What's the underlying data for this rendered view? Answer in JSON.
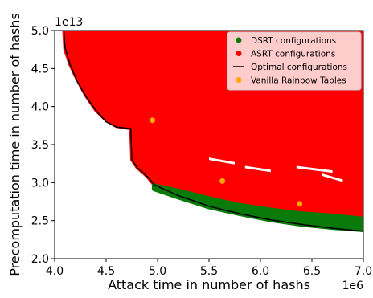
{
  "chart_data": {
    "type": "scatter",
    "xlabel": "Attack time in number of hashs",
    "ylabel": "Precomputation time in number of hashs",
    "x_scale_label": "1e6",
    "y_scale_label": "1e13",
    "xlim": [
      4.0,
      7.0
    ],
    "ylim": [
      2.0,
      5.0
    ],
    "x_ticks": [
      "4.0",
      "4.5",
      "5.0",
      "5.5",
      "6.0",
      "6.5",
      "7.0"
    ],
    "y_ticks": [
      "2.0",
      "2.5",
      "3.0",
      "3.5",
      "4.0",
      "4.5",
      "5.0"
    ],
    "legend_position": "top-right",
    "colors": {
      "dsrt": "#0a7a0a",
      "asrt": "#ff0000",
      "optimal": "#000000",
      "vanilla": "#ffa500"
    },
    "series": [
      {
        "name": "DSRT configurations",
        "kind": "scatter",
        "color_key": "dsrt",
        "boundary": [
          [
            4.96,
            2.91
          ],
          [
            5.2,
            2.8
          ],
          [
            5.5,
            2.67
          ],
          [
            5.8,
            2.58
          ],
          [
            6.1,
            2.5
          ],
          [
            6.4,
            2.44
          ],
          [
            6.7,
            2.4
          ],
          [
            7.0,
            2.37
          ]
        ],
        "upper": [
          [
            4.96,
            2.97
          ],
          [
            5.2,
            2.9
          ],
          [
            5.5,
            2.8
          ],
          [
            5.8,
            2.71
          ],
          [
            6.1,
            2.65
          ],
          [
            6.4,
            2.6
          ],
          [
            6.7,
            2.57
          ],
          [
            7.0,
            2.53
          ]
        ]
      },
      {
        "name": "ASRT configurations",
        "kind": "scatter",
        "color_key": "asrt",
        "boundary": [
          [
            4.09,
            5.0
          ],
          [
            4.1,
            4.75
          ],
          [
            4.15,
            4.55
          ],
          [
            4.22,
            4.35
          ],
          [
            4.3,
            4.15
          ],
          [
            4.4,
            3.95
          ],
          [
            4.5,
            3.82
          ],
          [
            4.6,
            3.74
          ],
          [
            4.74,
            3.71
          ],
          [
            4.75,
            3.3
          ],
          [
            4.8,
            3.2
          ],
          [
            4.9,
            3.08
          ],
          [
            4.96,
            2.98
          ]
        ]
      },
      {
        "name": "Optimal configurations",
        "kind": "line",
        "color_key": "optimal",
        "points": [
          [
            4.09,
            5.0
          ],
          [
            4.1,
            4.78
          ],
          [
            4.15,
            4.55
          ],
          [
            4.22,
            4.33
          ],
          [
            4.3,
            4.14
          ],
          [
            4.4,
            3.95
          ],
          [
            4.5,
            3.8
          ],
          [
            4.6,
            3.73
          ],
          [
            4.74,
            3.71
          ],
          [
            4.75,
            3.3
          ],
          [
            4.8,
            3.2
          ],
          [
            4.9,
            3.08
          ],
          [
            4.97,
            2.97
          ],
          [
            5.2,
            2.83
          ],
          [
            5.5,
            2.69
          ],
          [
            5.8,
            2.59
          ],
          [
            6.1,
            2.51
          ],
          [
            6.4,
            2.45
          ],
          [
            6.7,
            2.4
          ],
          [
            7.0,
            2.36
          ]
        ]
      },
      {
        "name": "Vanilla Rainbow Tables",
        "kind": "scatter",
        "color_key": "vanilla",
        "points": [
          [
            4.95,
            3.82
          ],
          [
            5.63,
            3.02
          ],
          [
            6.38,
            2.72
          ]
        ]
      }
    ]
  }
}
